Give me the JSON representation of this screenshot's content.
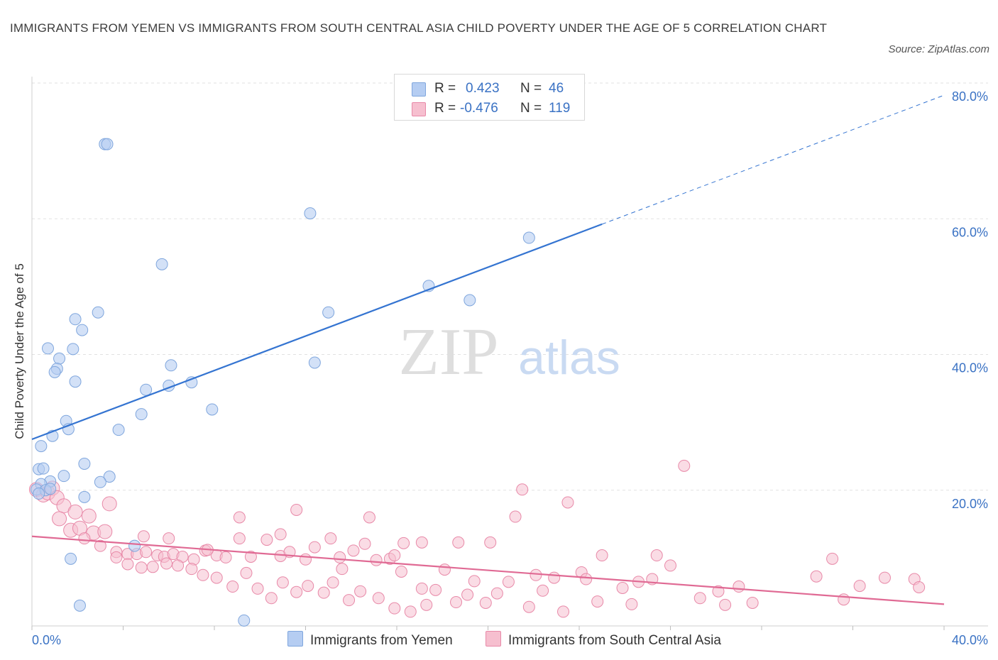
{
  "title": "IMMIGRANTS FROM YEMEN VS IMMIGRANTS FROM SOUTH CENTRAL ASIA CHILD POVERTY UNDER THE AGE OF 5 CORRELATION CHART",
  "source": "Source: ZipAtlas.com",
  "watermark": {
    "zip": "ZIP",
    "atlas": "atlas"
  },
  "legend": {
    "r_label": "R =",
    "n_label": "N =",
    "series1": {
      "r": "0.423",
      "n": "46"
    },
    "series2": {
      "r": "-0.476",
      "n": "119"
    }
  },
  "colors": {
    "blue_fill": "#b5cdf2",
    "blue_stroke": "#7fa6dd",
    "blue_line": "#3474d1",
    "pink_fill": "#f6bfcf",
    "pink_stroke": "#e889a8",
    "pink_line": "#e06a94",
    "axis_text": "#3a72c4",
    "grid": "#e2e2e2"
  },
  "chart_data": {
    "type": "scatter",
    "title": "IMMIGRANTS FROM YEMEN VS IMMIGRANTS FROM SOUTH CENTRAL ASIA CHILD POVERTY UNDER THE AGE OF 5 CORRELATION CHART",
    "xlabel": "",
    "ylabel": "Child Poverty Under the Age of 5",
    "xlim": [
      0,
      40
    ],
    "ylim": [
      0,
      80
    ],
    "x_tick_labels": [
      {
        "value": 0,
        "label": "0.0%"
      },
      {
        "value": 40,
        "label": "40.0%"
      }
    ],
    "y_tick_labels": [
      {
        "value": 20,
        "label": "20.0%"
      },
      {
        "value": 40,
        "label": "40.0%"
      },
      {
        "value": 60,
        "label": "60.0%"
      },
      {
        "value": 80,
        "label": "80.0%"
      }
    ],
    "grid": true,
    "series": [
      {
        "name": "Immigrants from Yemen",
        "r": 0.423,
        "n": 46,
        "trend": {
          "x0": 0,
          "y0": 27.5,
          "x1": 25,
          "y1": 59.2,
          "dashed_to_x": 40,
          "dashed_to_y": 78.2
        },
        "points": [
          [
            3.2,
            71
          ],
          [
            3.3,
            71
          ],
          [
            12.2,
            60.8
          ],
          [
            5.7,
            53.3
          ],
          [
            21.8,
            57.2
          ],
          [
            17.4,
            50.1
          ],
          [
            19.2,
            48.0
          ],
          [
            2.9,
            46.2
          ],
          [
            13.0,
            46.2
          ],
          [
            1.9,
            45.2
          ],
          [
            2.2,
            43.6
          ],
          [
            0.7,
            40.9
          ],
          [
            1.8,
            40.8
          ],
          [
            1.2,
            39.4
          ],
          [
            6.1,
            38.4
          ],
          [
            12.4,
            38.8
          ],
          [
            1.1,
            37.9
          ],
          [
            1.0,
            37.4
          ],
          [
            1.9,
            36.0
          ],
          [
            7.0,
            35.9
          ],
          [
            6.0,
            35.4
          ],
          [
            5.0,
            34.8
          ],
          [
            7.9,
            31.9
          ],
          [
            4.8,
            31.2
          ],
          [
            1.5,
            30.2
          ],
          [
            1.6,
            29.0
          ],
          [
            3.8,
            28.9
          ],
          [
            0.9,
            28.0
          ],
          [
            0.4,
            26.5
          ],
          [
            2.3,
            23.9
          ],
          [
            0.3,
            23.1
          ],
          [
            0.5,
            23.2
          ],
          [
            1.4,
            22.1
          ],
          [
            3.4,
            22.0
          ],
          [
            0.8,
            21.3
          ],
          [
            3.0,
            21.2
          ],
          [
            0.4,
            20.9
          ],
          [
            0.2,
            20.1
          ],
          [
            0.6,
            20.0
          ],
          [
            2.3,
            19.0
          ],
          [
            0.3,
            19.5
          ],
          [
            4.5,
            11.8
          ],
          [
            1.7,
            9.9
          ],
          [
            2.1,
            3.0
          ],
          [
            9.3,
            0.8
          ],
          [
            0.8,
            20.2
          ]
        ]
      },
      {
        "name": "Immigrants from South Central Asia",
        "r": -0.476,
        "n": 119,
        "trend": {
          "x0": 0,
          "y0": 13.2,
          "x1": 40,
          "y1": 3.2
        },
        "points": [
          [
            0.2,
            20.1
          ],
          [
            0.5,
            19.3
          ],
          [
            0.7,
            19.6
          ],
          [
            0.9,
            20.3
          ],
          [
            1.1,
            18.9
          ],
          [
            1.4,
            17.7
          ],
          [
            1.9,
            16.8
          ],
          [
            2.5,
            16.2
          ],
          [
            3.4,
            18.0
          ],
          [
            1.2,
            15.8
          ],
          [
            1.7,
            14.1
          ],
          [
            2.1,
            14.4
          ],
          [
            2.7,
            13.7
          ],
          [
            3.2,
            13.9
          ],
          [
            2.3,
            12.9
          ],
          [
            3.0,
            11.8
          ],
          [
            3.7,
            10.9
          ],
          [
            4.2,
            10.6
          ],
          [
            4.6,
            10.6
          ],
          [
            5.0,
            10.9
          ],
          [
            5.5,
            10.4
          ],
          [
            5.8,
            10.2
          ],
          [
            6.2,
            10.6
          ],
          [
            6.6,
            10.2
          ],
          [
            7.1,
            9.8
          ],
          [
            7.6,
            11.1
          ],
          [
            8.1,
            10.4
          ],
          [
            8.5,
            10.1
          ],
          [
            9.1,
            12.9
          ],
          [
            9.6,
            10.2
          ],
          [
            10.3,
            12.7
          ],
          [
            10.9,
            10.3
          ],
          [
            11.3,
            10.9
          ],
          [
            12.0,
            9.8
          ],
          [
            12.4,
            11.6
          ],
          [
            13.1,
            12.9
          ],
          [
            13.5,
            10.1
          ],
          [
            14.1,
            11.1
          ],
          [
            14.6,
            12.1
          ],
          [
            15.1,
            9.7
          ],
          [
            15.7,
            9.9
          ],
          [
            16.3,
            12.2
          ],
          [
            17.1,
            12.3
          ],
          [
            18.1,
            8.3
          ],
          [
            18.7,
            12.3
          ],
          [
            19.4,
            6.6
          ],
          [
            20.1,
            12.3
          ],
          [
            20.4,
            4.8
          ],
          [
            21.2,
            16.1
          ],
          [
            21.5,
            20.1
          ],
          [
            22.1,
            7.5
          ],
          [
            22.9,
            7.1
          ],
          [
            23.5,
            18.2
          ],
          [
            24.1,
            7.9
          ],
          [
            24.3,
            6.9
          ],
          [
            25.0,
            10.4
          ],
          [
            25.9,
            5.6
          ],
          [
            26.6,
            6.5
          ],
          [
            27.4,
            10.4
          ],
          [
            28.0,
            8.9
          ],
          [
            28.6,
            23.6
          ],
          [
            29.3,
            4.1
          ],
          [
            30.1,
            5.1
          ],
          [
            31.0,
            5.8
          ],
          [
            31.6,
            3.4
          ],
          [
            34.4,
            7.3
          ],
          [
            35.1,
            9.9
          ],
          [
            36.3,
            5.9
          ],
          [
            37.4,
            7.1
          ],
          [
            38.7,
            6.9
          ],
          [
            38.9,
            5.7
          ],
          [
            35.6,
            3.9
          ],
          [
            30.4,
            3.1
          ],
          [
            27.2,
            6.9
          ],
          [
            26.3,
            3.2
          ],
          [
            24.8,
            3.6
          ],
          [
            23.3,
            2.1
          ],
          [
            22.4,
            5.2
          ],
          [
            21.8,
            2.8
          ],
          [
            20.9,
            6.5
          ],
          [
            19.9,
            3.4
          ],
          [
            19.1,
            4.6
          ],
          [
            18.6,
            3.5
          ],
          [
            17.7,
            5.3
          ],
          [
            17.3,
            3.1
          ],
          [
            16.6,
            2.1
          ],
          [
            15.9,
            2.6
          ],
          [
            15.2,
            4.1
          ],
          [
            14.4,
            5.1
          ],
          [
            13.9,
            3.8
          ],
          [
            13.2,
            6.4
          ],
          [
            12.8,
            4.9
          ],
          [
            12.1,
            5.9
          ],
          [
            11.6,
            5.0
          ],
          [
            11.0,
            6.4
          ],
          [
            10.5,
            4.1
          ],
          [
            9.9,
            5.5
          ],
          [
            9.4,
            7.8
          ],
          [
            8.8,
            5.8
          ],
          [
            8.1,
            7.1
          ],
          [
            7.5,
            7.5
          ],
          [
            7.0,
            8.4
          ],
          [
            6.4,
            8.9
          ],
          [
            5.9,
            9.2
          ],
          [
            5.3,
            8.7
          ],
          [
            4.8,
            8.6
          ],
          [
            4.2,
            9.1
          ],
          [
            3.7,
            10.1
          ],
          [
            11.6,
            17.1
          ],
          [
            14.8,
            16.0
          ],
          [
            9.1,
            16.0
          ],
          [
            10.9,
            13.5
          ],
          [
            15.9,
            10.4
          ],
          [
            4.9,
            13.2
          ],
          [
            6.0,
            12.9
          ],
          [
            7.7,
            11.2
          ],
          [
            13.6,
            8.4
          ],
          [
            16.2,
            8.0
          ],
          [
            17.1,
            5.5
          ]
        ]
      }
    ]
  },
  "bottom_legend": [
    {
      "label": "Immigrants from Yemen"
    },
    {
      "label": "Immigrants from South Central Asia"
    }
  ]
}
